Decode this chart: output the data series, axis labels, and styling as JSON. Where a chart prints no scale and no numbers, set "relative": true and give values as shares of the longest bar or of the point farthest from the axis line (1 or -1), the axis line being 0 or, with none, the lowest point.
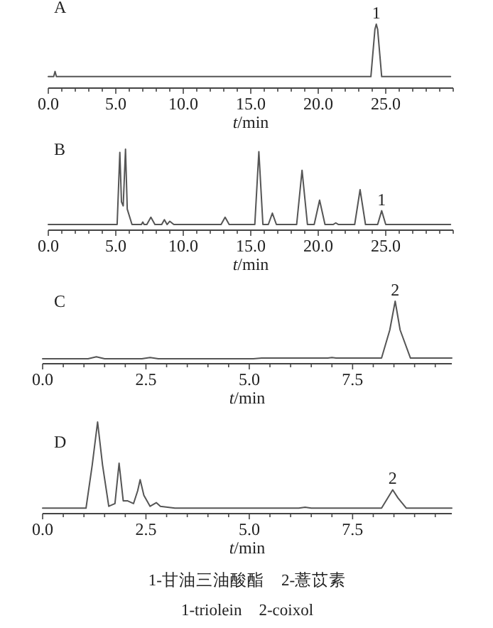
{
  "chart_data": [
    {
      "type": "line",
      "title": "A",
      "xlabel": "*t*/min",
      "relative": true,
      "color": "#555555",
      "xlim": [
        0,
        30
      ],
      "xticks": [
        {
          "value": 0,
          "label": "0.0"
        },
        {
          "value": 1,
          "label": null
        },
        {
          "value": 2,
          "label": null
        },
        {
          "value": 3,
          "label": null
        },
        {
          "value": 4,
          "label": null
        },
        {
          "value": 5,
          "label": "5.0"
        },
        {
          "value": 6,
          "label": null
        },
        {
          "value": 7,
          "label": null
        },
        {
          "value": 8,
          "label": null
        },
        {
          "value": 9,
          "label": null
        },
        {
          "value": 10,
          "label": "10.0"
        },
        {
          "value": 11,
          "label": null
        },
        {
          "value": 12,
          "label": null
        },
        {
          "value": 13,
          "label": null
        },
        {
          "value": 14,
          "label": null
        },
        {
          "value": 15,
          "label": "15.0"
        },
        {
          "value": 16,
          "label": null
        },
        {
          "value": 17,
          "label": null
        },
        {
          "value": 18,
          "label": null
        },
        {
          "value": 19,
          "label": null
        },
        {
          "value": 20,
          "label": "20.0"
        },
        {
          "value": 21,
          "label": null
        },
        {
          "value": 22,
          "label": null
        },
        {
          "value": 23,
          "label": null
        },
        {
          "value": 24,
          "label": null
        },
        {
          "value": 25,
          "label": "25.0"
        },
        {
          "value": 26,
          "label": null
        },
        {
          "value": 27,
          "label": null
        },
        {
          "value": 28,
          "label": null
        },
        {
          "value": 29,
          "label": null
        },
        {
          "value": 30,
          "label": null
        }
      ],
      "x": [
        0,
        0.4,
        0.5,
        0.6,
        1,
        23.9,
        24.2,
        24.3,
        24.4,
        24.7,
        29.8
      ],
      "values": [
        0.18,
        0.18,
        0.26,
        0.18,
        0.18,
        0.18,
        0.92,
        1,
        0.92,
        0.18,
        0.18
      ],
      "annotations": [
        {
          "text": "1",
          "x": 24.3,
          "y": 1
        }
      ]
    },
    {
      "type": "line",
      "title": "B",
      "xlabel": "*t*/min",
      "relative": true,
      "color": "#555555",
      "xlim": [
        0,
        30
      ],
      "xticks": [
        {
          "value": 0,
          "label": "0.0"
        },
        {
          "value": 1,
          "label": null
        },
        {
          "value": 2,
          "label": null
        },
        {
          "value": 3,
          "label": null
        },
        {
          "value": 4,
          "label": null
        },
        {
          "value": 5,
          "label": "5.0"
        },
        {
          "value": 6,
          "label": null
        },
        {
          "value": 7,
          "label": null
        },
        {
          "value": 8,
          "label": null
        },
        {
          "value": 9,
          "label": null
        },
        {
          "value": 10,
          "label": "10.0"
        },
        {
          "value": 11,
          "label": null
        },
        {
          "value": 12,
          "label": null
        },
        {
          "value": 13,
          "label": null
        },
        {
          "value": 14,
          "label": null
        },
        {
          "value": 15,
          "label": "15.0"
        },
        {
          "value": 16,
          "label": null
        },
        {
          "value": 17,
          "label": null
        },
        {
          "value": 18,
          "label": null
        },
        {
          "value": 19,
          "label": null
        },
        {
          "value": 20,
          "label": "20.0"
        },
        {
          "value": 21,
          "label": null
        },
        {
          "value": 22,
          "label": null
        },
        {
          "value": 23,
          "label": null
        },
        {
          "value": 24,
          "label": null
        },
        {
          "value": 25,
          "label": "25.0"
        },
        {
          "value": 26,
          "label": null
        },
        {
          "value": 27,
          "label": null
        },
        {
          "value": 28,
          "label": null
        },
        {
          "value": 29,
          "label": null
        },
        {
          "value": 30,
          "label": null
        }
      ],
      "x": [
        0,
        5.1,
        5.3,
        5.42,
        5.55,
        5.72,
        5.85,
        6.2,
        6.9,
        7.0,
        7.1,
        7.3,
        7.6,
        7.9,
        8.4,
        8.6,
        8.8,
        9.0,
        9.3,
        12.8,
        13.1,
        13.4,
        15.3,
        15.6,
        15.9,
        16.3,
        16.6,
        16.9,
        18.4,
        18.8,
        19.2,
        19.7,
        20.1,
        20.5,
        21.1,
        21.3,
        21.5,
        22.7,
        23.1,
        23.5,
        24.4,
        24.7,
        25.0,
        29.8
      ],
      "values": [
        0.07,
        0.07,
        0.96,
        0.35,
        0.3,
        1,
        0.26,
        0.07,
        0.07,
        0.1,
        0.07,
        0.07,
        0.16,
        0.07,
        0.07,
        0.13,
        0.07,
        0.11,
        0.07,
        0.07,
        0.16,
        0.07,
        0.07,
        0.97,
        0.07,
        0.07,
        0.21,
        0.07,
        0.07,
        0.74,
        0.07,
        0.07,
        0.37,
        0.07,
        0.07,
        0.09,
        0.07,
        0.07,
        0.5,
        0.07,
        0.07,
        0.24,
        0.07,
        0.07
      ],
      "annotations": [
        {
          "text": "1",
          "x": 24.7,
          "y": 0.24
        }
      ]
    },
    {
      "type": "line",
      "title": "C",
      "xlabel": "*t*/min",
      "relative": true,
      "color": "#555555",
      "xlim": [
        0,
        9.9
      ],
      "xticks": [
        {
          "value": 0,
          "label": "0.0"
        },
        {
          "value": 0.5,
          "label": null
        },
        {
          "value": 1,
          "label": null
        },
        {
          "value": 1.5,
          "label": null
        },
        {
          "value": 2,
          "label": null
        },
        {
          "value": 2.5,
          "label": "2.5"
        },
        {
          "value": 3,
          "label": null
        },
        {
          "value": 3.5,
          "label": null
        },
        {
          "value": 4,
          "label": null
        },
        {
          "value": 4.5,
          "label": null
        },
        {
          "value": 5,
          "label": "5.0"
        },
        {
          "value": 5.5,
          "label": null
        },
        {
          "value": 6,
          "label": null
        },
        {
          "value": 6.5,
          "label": null
        },
        {
          "value": 7,
          "label": null
        },
        {
          "value": 7.5,
          "label": "7.5"
        },
        {
          "value": 8,
          "label": null
        },
        {
          "value": 8.5,
          "label": null
        },
        {
          "value": 9,
          "label": null
        },
        {
          "value": 9.5,
          "label": null
        }
      ],
      "x": [
        0,
        1.1,
        1.3,
        1.5,
        2.4,
        2.6,
        2.8,
        5.1,
        5.3,
        6.9,
        7.0,
        7.1,
        8.2,
        8.4,
        8.53,
        8.65,
        8.9,
        9.9
      ],
      "values": [
        0.08,
        0.08,
        0.11,
        0.08,
        0.08,
        0.1,
        0.08,
        0.08,
        0.09,
        0.09,
        0.1,
        0.09,
        0.09,
        0.54,
        1,
        0.54,
        0.09,
        0.09
      ],
      "annotations": [
        {
          "text": "2",
          "x": 8.53,
          "y": 1
        }
      ]
    },
    {
      "type": "line",
      "title": "D",
      "xlabel": "*t*/min",
      "relative": true,
      "color": "#555555",
      "xlim": [
        0,
        9.9
      ],
      "xticks": [
        {
          "value": 0,
          "label": "0.0"
        },
        {
          "value": 0.5,
          "label": null
        },
        {
          "value": 1,
          "label": null
        },
        {
          "value": 1.5,
          "label": null
        },
        {
          "value": 2,
          "label": null
        },
        {
          "value": 2.5,
          "label": "2.5"
        },
        {
          "value": 3,
          "label": null
        },
        {
          "value": 3.5,
          "label": null
        },
        {
          "value": 4,
          "label": null
        },
        {
          "value": 4.5,
          "label": null
        },
        {
          "value": 5,
          "label": "5.0"
        },
        {
          "value": 5.5,
          "label": null
        },
        {
          "value": 6,
          "label": null
        },
        {
          "value": 6.5,
          "label": null
        },
        {
          "value": 7,
          "label": null
        },
        {
          "value": 7.5,
          "label": "7.5"
        },
        {
          "value": 8,
          "label": null
        },
        {
          "value": 8.5,
          "label": null
        },
        {
          "value": 9,
          "label": null
        },
        {
          "value": 9.5,
          "label": null
        }
      ],
      "x": [
        0,
        1.05,
        1.2,
        1.33,
        1.45,
        1.6,
        1.75,
        1.85,
        1.95,
        2.05,
        2.2,
        2.3,
        2.36,
        2.45,
        2.6,
        2.75,
        2.85,
        3.2,
        6.2,
        6.35,
        6.5,
        8.2,
        8.35,
        8.47,
        8.6,
        8.8,
        9.9
      ],
      "values": [
        0.06,
        0.06,
        0.53,
        1,
        0.53,
        0.08,
        0.11,
        0.55,
        0.14,
        0.14,
        0.11,
        0.25,
        0.37,
        0.2,
        0.08,
        0.12,
        0.08,
        0.06,
        0.06,
        0.07,
        0.06,
        0.06,
        0.17,
        0.26,
        0.17,
        0.06,
        0.06
      ],
      "annotations": [
        {
          "text": "2",
          "x": 8.47,
          "y": 0.26
        },
        "1-甘油三油酸酯　2-薏苡素",
        "1-triolein　2-coixol"
      ]
    }
  ]
}
